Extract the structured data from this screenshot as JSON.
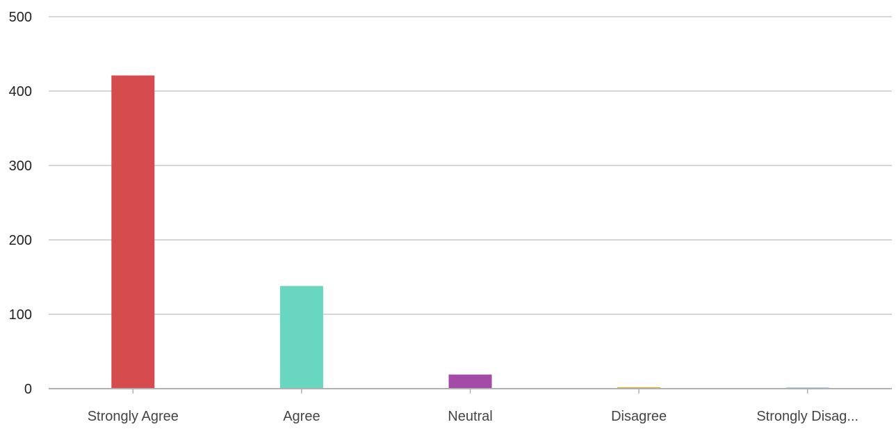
{
  "chart_data": {
    "type": "bar",
    "categories": [
      "Strongly Agree",
      "Agree",
      "Neutral",
      "Disagree",
      "Strongly Disag..."
    ],
    "values": [
      421,
      138,
      19,
      2,
      1
    ],
    "colors": [
      "#d64b4d",
      "#69d7bf",
      "#a44aa7",
      "#d4b12e",
      "#5ba7d3"
    ],
    "ylim": [
      0,
      500
    ],
    "yticks": [
      "0",
      "100",
      "200",
      "300",
      "400",
      "500"
    ],
    "grid": true,
    "legend": "none"
  }
}
